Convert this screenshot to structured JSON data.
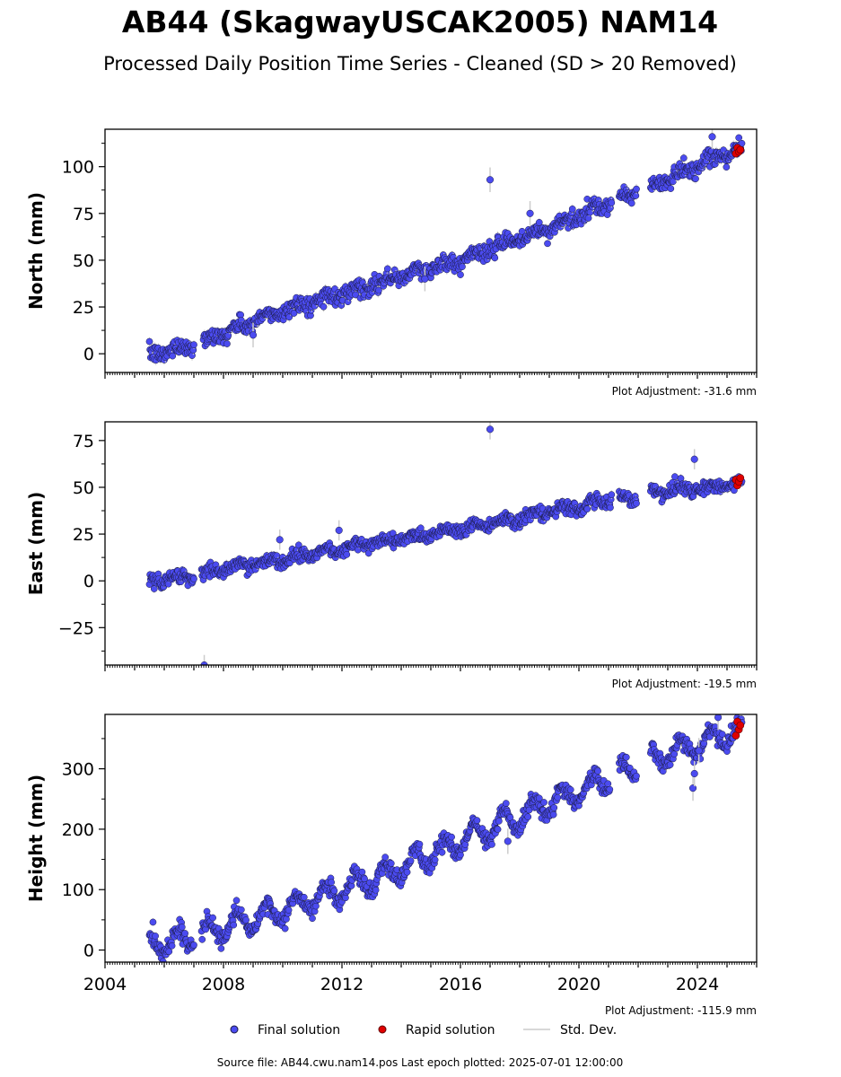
{
  "title": "AB44 (SkagwayUSCAK2005) NAM14",
  "subtitle": "Processed Daily Position Time Series - Cleaned (SD > 20 Removed)",
  "colors": {
    "final": "#4b4bf0",
    "final_edge": "#1a1a40",
    "rapid": "#e00000",
    "stddev": "#cccccc"
  },
  "legend": {
    "final": "Final solution",
    "rapid": "Rapid solution",
    "stddev": "Std. Dev."
  },
  "footer": "Source file: AB44.cwu.nam14.pos  Last epoch plotted: 2025-07-01 12:00:00",
  "chart_data": [
    {
      "type": "scatter",
      "ylabel": "North (mm)",
      "xlim": [
        2004,
        2026
      ],
      "ylim": [
        -10,
        120
      ],
      "yticks": [
        0,
        25,
        50,
        75,
        100
      ],
      "xticks": [
        2004,
        2008,
        2012,
        2016,
        2020,
        2024
      ],
      "show_xtick_labels": false,
      "adjustment": "Plot Adjustment: -31.6 mm",
      "start": 2005.5,
      "end": 2025.5,
      "trend_points": [
        [
          2005.5,
          -1
        ],
        [
          2007.0,
          5
        ],
        [
          2010.0,
          23
        ],
        [
          2013.0,
          37
        ],
        [
          2016.0,
          50
        ],
        [
          2019.0,
          67
        ],
        [
          2021.0,
          80
        ],
        [
          2022.5,
          90
        ],
        [
          2024.0,
          100
        ],
        [
          2025.5,
          110
        ]
      ],
      "annual_amp": 1.5,
      "noise": 2.2,
      "gaps": [
        [
          2007.0,
          2007.3
        ],
        [
          2021.1,
          2021.35
        ],
        [
          2021.95,
          2022.4
        ]
      ],
      "outliers": [
        [
          2017.0,
          93
        ],
        [
          2018.35,
          75
        ],
        [
          2009.0,
          10
        ],
        [
          2014.8,
          40
        ],
        [
          2024.5,
          116
        ]
      ],
      "rapid_points": [
        [
          2025.3,
          107
        ],
        [
          2025.35,
          110
        ],
        [
          2025.4,
          108
        ],
        [
          2025.45,
          109
        ]
      ]
    },
    {
      "type": "scatter",
      "ylabel": "East (mm)",
      "xlim": [
        2004,
        2026
      ],
      "ylim": [
        -45,
        85
      ],
      "yticks": [
        -25,
        0,
        25,
        50,
        75
      ],
      "ytick_labels": [
        "−25",
        "0",
        "25",
        "50",
        "75"
      ],
      "xticks": [
        2004,
        2008,
        2012,
        2016,
        2020,
        2024
      ],
      "show_xtick_labels": false,
      "adjustment": "Plot Adjustment: -19.5 mm",
      "start": 2005.5,
      "end": 2025.5,
      "trend_points": [
        [
          2005.5,
          0
        ],
        [
          2007.0,
          3
        ],
        [
          2010.0,
          12
        ],
        [
          2013.0,
          20
        ],
        [
          2016.0,
          28
        ],
        [
          2018.5,
          35
        ],
        [
          2021.0,
          43
        ],
        [
          2022.5,
          47
        ],
        [
          2025.5,
          52
        ]
      ],
      "annual_amp": 1.5,
      "noise": 1.8,
      "gaps": [
        [
          2007.0,
          2007.25
        ],
        [
          2021.1,
          2021.35
        ],
        [
          2021.95,
          2022.4
        ]
      ],
      "outliers": [
        [
          2017.0,
          81
        ],
        [
          2007.35,
          -45
        ],
        [
          2023.9,
          65
        ],
        [
          2011.9,
          27
        ],
        [
          2009.9,
          22
        ]
      ],
      "rapid_points": [
        [
          2025.3,
          54
        ],
        [
          2025.35,
          51
        ],
        [
          2025.4,
          53
        ],
        [
          2025.45,
          55
        ]
      ]
    },
    {
      "type": "scatter",
      "ylabel": "Height (mm)",
      "xlim": [
        2004,
        2026
      ],
      "ylim": [
        -20,
        390
      ],
      "yticks": [
        0,
        100,
        200,
        300
      ],
      "xticks": [
        2004,
        2008,
        2012,
        2016,
        2020,
        2024
      ],
      "xtick_labels": [
        "2004",
        "2008",
        "2012",
        "2016",
        "2020",
        "2024"
      ],
      "show_xtick_labels": true,
      "adjustment": "Plot Adjustment: -115.9 mm",
      "start": 2005.5,
      "end": 2025.5,
      "trend_points": [
        [
          2005.5,
          10
        ],
        [
          2007.0,
          20
        ],
        [
          2008.5,
          45
        ],
        [
          2010.0,
          65
        ],
        [
          2012.0,
          100
        ],
        [
          2014.0,
          135
        ],
        [
          2016.0,
          180
        ],
        [
          2018.0,
          220
        ],
        [
          2020.0,
          262
        ],
        [
          2021.5,
          295
        ],
        [
          2023.0,
          325
        ],
        [
          2025.5,
          365
        ]
      ],
      "annual_amp": 18,
      "noise": 7,
      "gaps": [
        [
          2007.0,
          2007.25
        ],
        [
          2021.05,
          2021.35
        ],
        [
          2021.95,
          2022.4
        ]
      ],
      "outliers": [
        [
          2023.85,
          268
        ],
        [
          2023.9,
          292
        ],
        [
          2024.05,
          330
        ],
        [
          2024.7,
          385
        ],
        [
          2017.6,
          180
        ]
      ],
      "rapid_points": [
        [
          2025.3,
          355
        ],
        [
          2025.35,
          378
        ],
        [
          2025.4,
          365
        ],
        [
          2025.45,
          372
        ]
      ]
    }
  ]
}
